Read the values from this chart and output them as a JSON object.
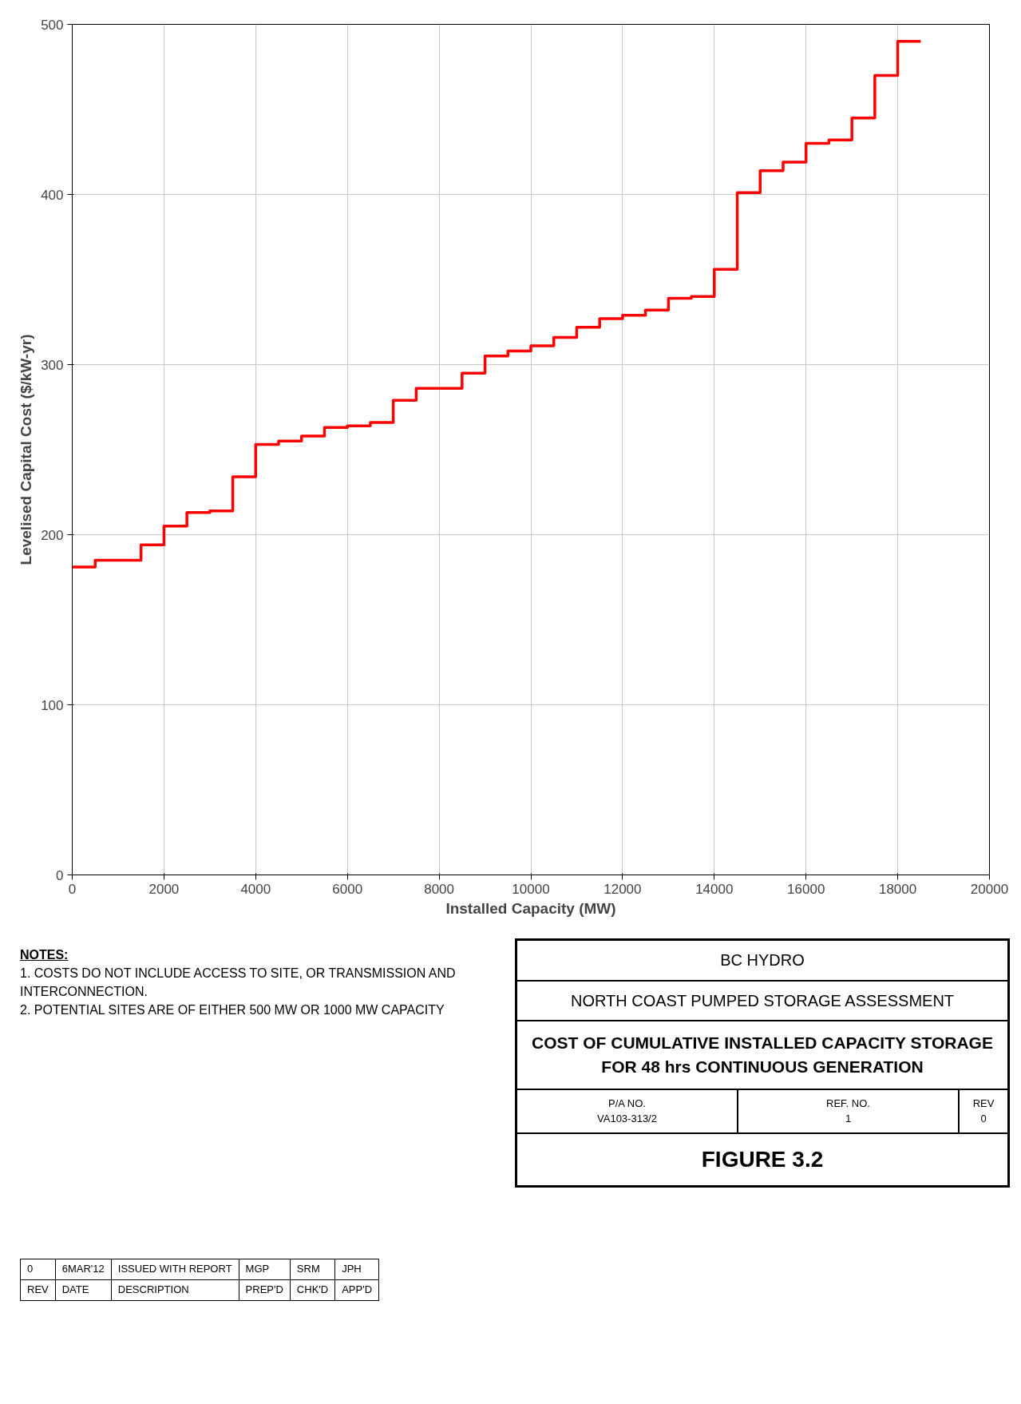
{
  "chart_data": {
    "type": "step",
    "title": "COST OF CUMULATIVE INSTALLED CAPACITY STORAGE FOR 48 hrs CONTINUOUS GENERATION",
    "subtitle": "NORTH COAST PUMPED STORAGE ASSESSMENT",
    "xlabel": "Installed Capacity (MW)",
    "ylabel": "Levelised Capital Cost ($/kW-yr)",
    "x": [
      0,
      500,
      1000,
      1500,
      2000,
      2500,
      3000,
      3500,
      4000,
      4500,
      5000,
      5500,
      6000,
      6500,
      7000,
      7500,
      8000,
      8500,
      9000,
      9500,
      10000,
      10500,
      11000,
      11500,
      12000,
      12500,
      13000,
      13500,
      14000,
      14500,
      15000,
      15500,
      16000,
      16500,
      17000,
      17500,
      18000,
      18500
    ],
    "series": [
      {
        "color": "#ff0000",
        "values": [
          181,
          185,
          185,
          194,
          205,
          213,
          214,
          234,
          253,
          255,
          258,
          263,
          264,
          266,
          279,
          286,
          286,
          295,
          305,
          308,
          311,
          316,
          322,
          327,
          329,
          332,
          339,
          340,
          356,
          401,
          414,
          419,
          430,
          432,
          445,
          470,
          490,
          490
        ]
      }
    ],
    "xlim": [
      0,
      20000
    ],
    "xticks": [
      0,
      2000,
      4000,
      6000,
      8000,
      10000,
      12000,
      14000,
      16000,
      18000,
      20000
    ],
    "ylim": [
      0,
      500
    ],
    "yticks": [
      0,
      100,
      200,
      300,
      400,
      500
    ],
    "grid": true,
    "line_style": "solid",
    "annotations": [
      "BC HYDRO",
      "NOTES:",
      "1. COSTS DO NOT INCLUDE ACCESS TO SITE, OR TRANSMISSION AND INTERCONNECTION.",
      "2. POTENTIAL SITES ARE OF EITHER 500 MW OR 1000 MW CAPACITY",
      "P/A NO.",
      "VA103-313/2",
      "REF. NO.",
      "1",
      "REV",
      "0",
      "FIGURE 3.2",
      "0",
      "6MAR'12",
      "ISSUED WITH REPORT",
      "MGP",
      "SRM",
      "JPH",
      "REV",
      "DATE",
      "DESCRIPTION",
      "PREP'D",
      "CHK'D",
      "APP'D"
    ]
  }
}
